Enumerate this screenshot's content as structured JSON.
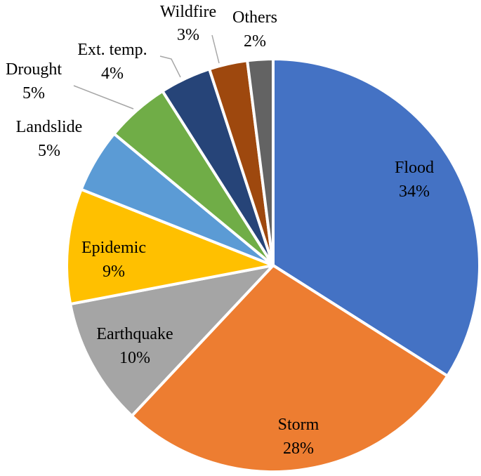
{
  "chart_data": {
    "type": "pie",
    "title": "",
    "start_angle_deg": 0,
    "direction": "clockwise",
    "slices": [
      {
        "label": "Flood",
        "value": 34,
        "display": "34%",
        "color": "#4472C4"
      },
      {
        "label": "Storm",
        "value": 28,
        "display": "28%",
        "color": "#ED7D31"
      },
      {
        "label": "Earthquake",
        "value": 10,
        "display": "10%",
        "color": "#A5A5A5"
      },
      {
        "label": "Epidemic",
        "value": 9,
        "display": "9%",
        "color": "#FFC000"
      },
      {
        "label": "Landslide",
        "value": 5,
        "display": "5%",
        "color": "#5B9BD5"
      },
      {
        "label": "Drought",
        "value": 5,
        "display": "5%",
        "color": "#70AD47"
      },
      {
        "label": "Ext. temp.",
        "value": 4,
        "display": "4%",
        "color": "#264478"
      },
      {
        "label": "Wildfire",
        "value": 3,
        "display": "3%",
        "color": "#9E480E"
      },
      {
        "label": "Others",
        "value": 2,
        "display": "2%",
        "color": "#636363"
      }
    ]
  }
}
